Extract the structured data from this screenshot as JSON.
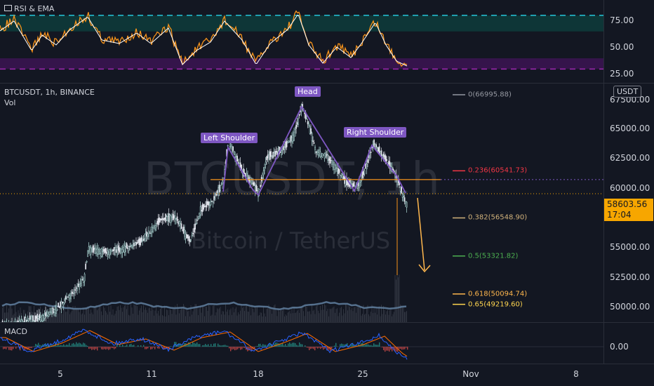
{
  "rsi": {
    "legend": "RSI & EMA",
    "ticks": [
      {
        "label": "75.00",
        "value": 75
      },
      {
        "label": "50.00",
        "value": 50
      },
      {
        "label": "25.00",
        "value": 25
      }
    ],
    "levels": {
      "upper": 80,
      "upper_inner": 65,
      "lower_inner": 40,
      "lower": 30
    }
  },
  "main": {
    "symbol_legend": "BTCUSDT, 1h, BINANCE",
    "vol_legend": "Vol",
    "watermark_symbol": "BTCUSDT, 1h",
    "watermark_name": "Bitcoin / TetherUS",
    "currency_button": "USDT",
    "ticks": [
      {
        "label": "65000.00",
        "value": 65000
      },
      {
        "label": "62500.00",
        "value": 62500
      },
      {
        "label": "60000.00",
        "value": 60000
      },
      {
        "label": "57500.00",
        "value": 57500
      },
      {
        "label": "55000.00",
        "value": 55000
      },
      {
        "label": "52500.00",
        "value": 52500
      },
      {
        "label": "50000.00",
        "value": 50000
      }
    ],
    "top_tick": "67500.00",
    "last_price": "58603.56",
    "countdown": "17:04",
    "neckline_price": 59800,
    "pattern_labels": {
      "left": "Left Shoulder",
      "head": "Head",
      "right": "Right Shoulder"
    },
    "fib_levels": [
      {
        "label": "0(66995.88)",
        "value": 66995.88,
        "color": "#9598a1"
      },
      {
        "label": "0.236(60541.73)",
        "value": 60541.73,
        "color": "#f23645"
      },
      {
        "label": "0.382(56548.90)",
        "value": 56548.9,
        "color": "#d1b27b"
      },
      {
        "label": "0.5(53321.82)",
        "value": 53321.82,
        "color": "#4caf50"
      },
      {
        "label": "0.618(50094.74)",
        "value": 50094.74,
        "color": "#ffb74d"
      },
      {
        "label": "0.65(49219.60)",
        "value": 49219.6,
        "color": "#ffd54f"
      }
    ]
  },
  "macd": {
    "legend": "MACD",
    "ticks": [
      {
        "label": "0.00",
        "value": 0
      }
    ]
  },
  "time_axis": {
    "ticks": [
      "5",
      "11",
      "18",
      "25",
      "Nov",
      "8"
    ]
  },
  "colors": {
    "background": "#131722",
    "up": "#b2dfdb",
    "rsi_line": "#f7931a",
    "rsi_ema": "#ffffff",
    "pattern": "#7e57c2",
    "neckline": "#f7931a",
    "volume": "#5d7a99",
    "macd": "#2962ff",
    "signal": "#ff6d00"
  }
}
